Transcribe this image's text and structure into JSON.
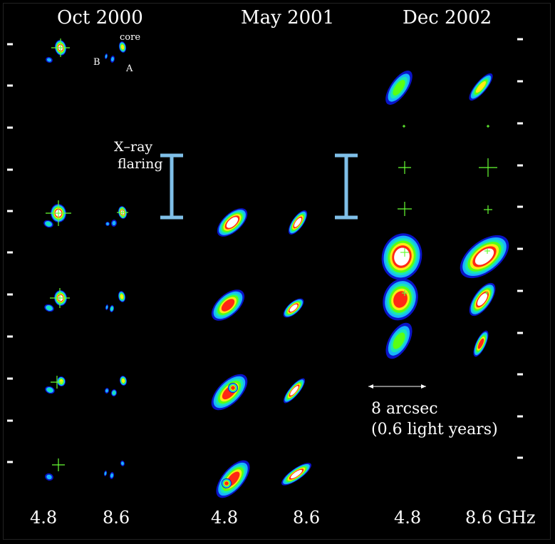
{
  "epochs": [
    "Oct 2000",
    "May 2001",
    "Dec 2002"
  ],
  "frequency_labels": [
    "4.8",
    "8.6",
    "4.8",
    "8.6",
    "4.8",
    "8.6 GHz"
  ],
  "component_labels": {
    "core": "core",
    "b": "B",
    "a": "A"
  },
  "annotation": {
    "line1": "X–ray",
    "line2": "flaring"
  },
  "scale_bar": {
    "line1": "8 arcsec",
    "line2": "(0.6 light years)"
  },
  "colors": {
    "background": "#000000",
    "flare_bar": "#7fbfe8",
    "crosshair": "#66ff33",
    "contours": [
      "#0a14c8",
      "#19b4ff",
      "#19e6b4",
      "#5aff14",
      "#ffeb14",
      "#ff2814",
      "#ffffff"
    ]
  }
}
